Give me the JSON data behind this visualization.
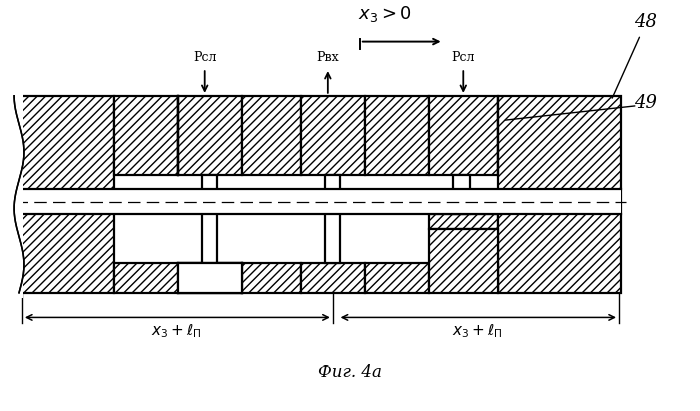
{
  "title": "Фиг. 4а",
  "label_x3": "x_3 > 0",
  "label_pcl": "Рсл",
  "label_pvx": "Рвх",
  "label_48": "48",
  "label_49": "49",
  "label_dim": "x_3 + ℓ_П",
  "figsize": [
    7.0,
    4.11
  ],
  "dpi": 100,
  "bg": "#ffffff"
}
